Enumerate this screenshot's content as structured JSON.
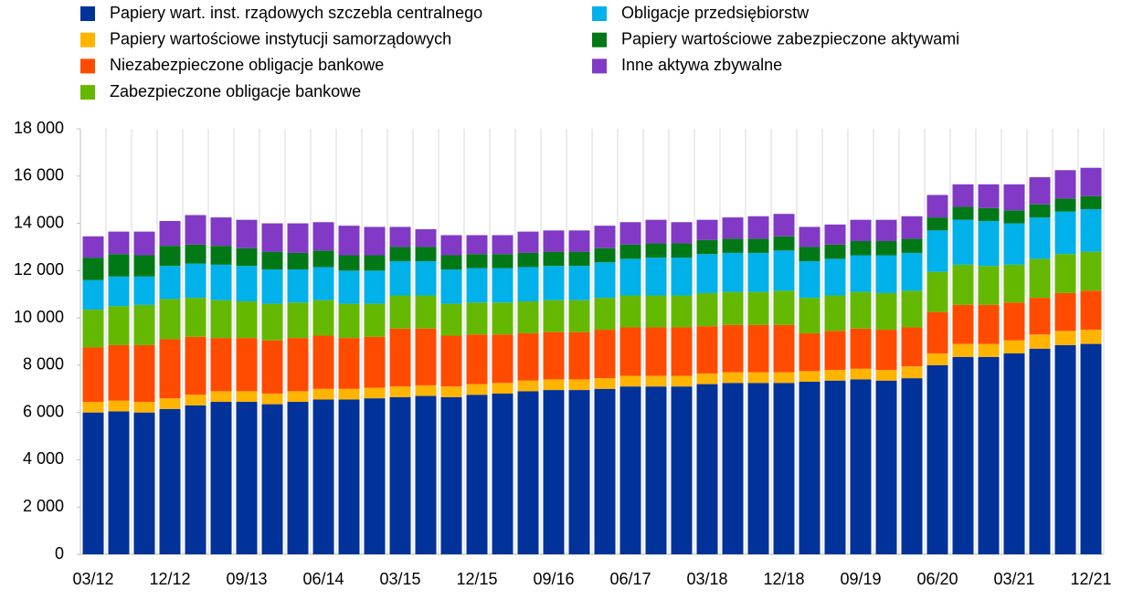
{
  "chart_data": {
    "type": "stacked_bar",
    "categories": [
      "03/12",
      null,
      null,
      "12/12",
      null,
      null,
      "09/13",
      null,
      null,
      "06/14",
      null,
      null,
      "03/15",
      null,
      null,
      "12/15",
      null,
      null,
      "09/16",
      null,
      null,
      "06/17",
      null,
      null,
      "03/18",
      null,
      null,
      "12/18",
      null,
      null,
      "09/19",
      null,
      null,
      "06/20",
      null,
      null,
      "03/21",
      null,
      null,
      "12/21"
    ],
    "series": [
      {
        "name": "Papiery wart. inst. rządowych szczebla centralnego",
        "color": "#003299",
        "values": [
          6000,
          6050,
          6000,
          6150,
          6300,
          6450,
          6450,
          6350,
          6450,
          6550,
          6550,
          6600,
          6650,
          6700,
          6650,
          6750,
          6800,
          6900,
          6950,
          6950,
          7000,
          7100,
          7100,
          7100,
          7200,
          7250,
          7250,
          7250,
          7300,
          7350,
          7400,
          7350,
          7450,
          8000,
          8350,
          8350,
          8500,
          8700,
          8850,
          8900
        ]
      },
      {
        "name": "Papiery wartościowe instytucji  samorządowych",
        "color": "#ffb400",
        "values": [
          450,
          450,
          450,
          450,
          450,
          450,
          450,
          450,
          450,
          450,
          450,
          450,
          450,
          450,
          450,
          450,
          450,
          450,
          450,
          450,
          450,
          450,
          450,
          450,
          450,
          450,
          450,
          450,
          450,
          450,
          450,
          450,
          500,
          500,
          550,
          550,
          550,
          600,
          600,
          600
        ]
      },
      {
        "name": "Niezabezpieczone obligacje bankowe",
        "color": "#ff4b00",
        "values": [
          2300,
          2350,
          2400,
          2500,
          2450,
          2250,
          2250,
          2250,
          2250,
          2250,
          2150,
          2150,
          2450,
          2400,
          2150,
          2100,
          2050,
          2000,
          2000,
          2000,
          2050,
          2050,
          2050,
          2050,
          2000,
          2000,
          2000,
          2000,
          1600,
          1650,
          1700,
          1700,
          1650,
          1750,
          1650,
          1650,
          1600,
          1550,
          1600,
          1650
        ]
      },
      {
        "name": "Zabezpieczone obligacje bankowe",
        "color": "#65b800",
        "values": [
          1600,
          1650,
          1700,
          1700,
          1650,
          1600,
          1550,
          1550,
          1500,
          1500,
          1450,
          1400,
          1400,
          1400,
          1350,
          1350,
          1350,
          1350,
          1350,
          1350,
          1350,
          1350,
          1350,
          1350,
          1400,
          1400,
          1400,
          1450,
          1500,
          1500,
          1550,
          1550,
          1550,
          1700,
          1700,
          1650,
          1600,
          1650,
          1650,
          1650
        ]
      },
      {
        "name": "Obligacje przedsiębiorstw",
        "color": "#00b1ea",
        "values": [
          1250,
          1250,
          1200,
          1400,
          1450,
          1500,
          1500,
          1450,
          1400,
          1400,
          1400,
          1400,
          1450,
          1450,
          1450,
          1450,
          1450,
          1450,
          1450,
          1450,
          1500,
          1550,
          1600,
          1600,
          1650,
          1650,
          1650,
          1700,
          1550,
          1550,
          1550,
          1600,
          1600,
          1750,
          1900,
          1900,
          1750,
          1750,
          1800,
          1800
        ]
      },
      {
        "name": "Papiery wartościowe zabezpieczone aktywami",
        "color": "#007816",
        "values": [
          950,
          950,
          900,
          850,
          800,
          800,
          750,
          750,
          700,
          700,
          650,
          650,
          600,
          600,
          600,
          600,
          600,
          600,
          600,
          600,
          600,
          600,
          600,
          600,
          600,
          600,
          600,
          600,
          600,
          600,
          600,
          600,
          600,
          550,
          550,
          550,
          550,
          550,
          550,
          550
        ]
      },
      {
        "name": "Inne aktywa zbywalne",
        "color": "#8139c6",
        "values": [
          900,
          950,
          1000,
          1050,
          1250,
          1200,
          1200,
          1200,
          1250,
          1200,
          1250,
          1200,
          850,
          750,
          850,
          800,
          800,
          900,
          900,
          900,
          950,
          950,
          1000,
          900,
          850,
          900,
          950,
          950,
          850,
          850,
          900,
          900,
          950,
          950,
          950,
          1000,
          1100,
          1150,
          1200,
          1200
        ]
      }
    ],
    "ylim": [
      0,
      18000
    ],
    "yticks": [
      0,
      {
        "value": 2000,
        "label": "2 000"
      },
      {
        "value": 4000,
        "label": "4 000"
      },
      {
        "value": 6000,
        "label": "6 000"
      },
      {
        "value": 8000,
        "label": "8 000"
      },
      {
        "value": 10000,
        "label": "10 000"
      },
      {
        "value": 12000,
        "label": "12 000"
      },
      {
        "value": 14000,
        "label": "14 000"
      },
      {
        "value": 16000,
        "label": "16 000"
      },
      {
        "value": 18000,
        "label": "18 000"
      }
    ],
    "grid": "x"
  }
}
